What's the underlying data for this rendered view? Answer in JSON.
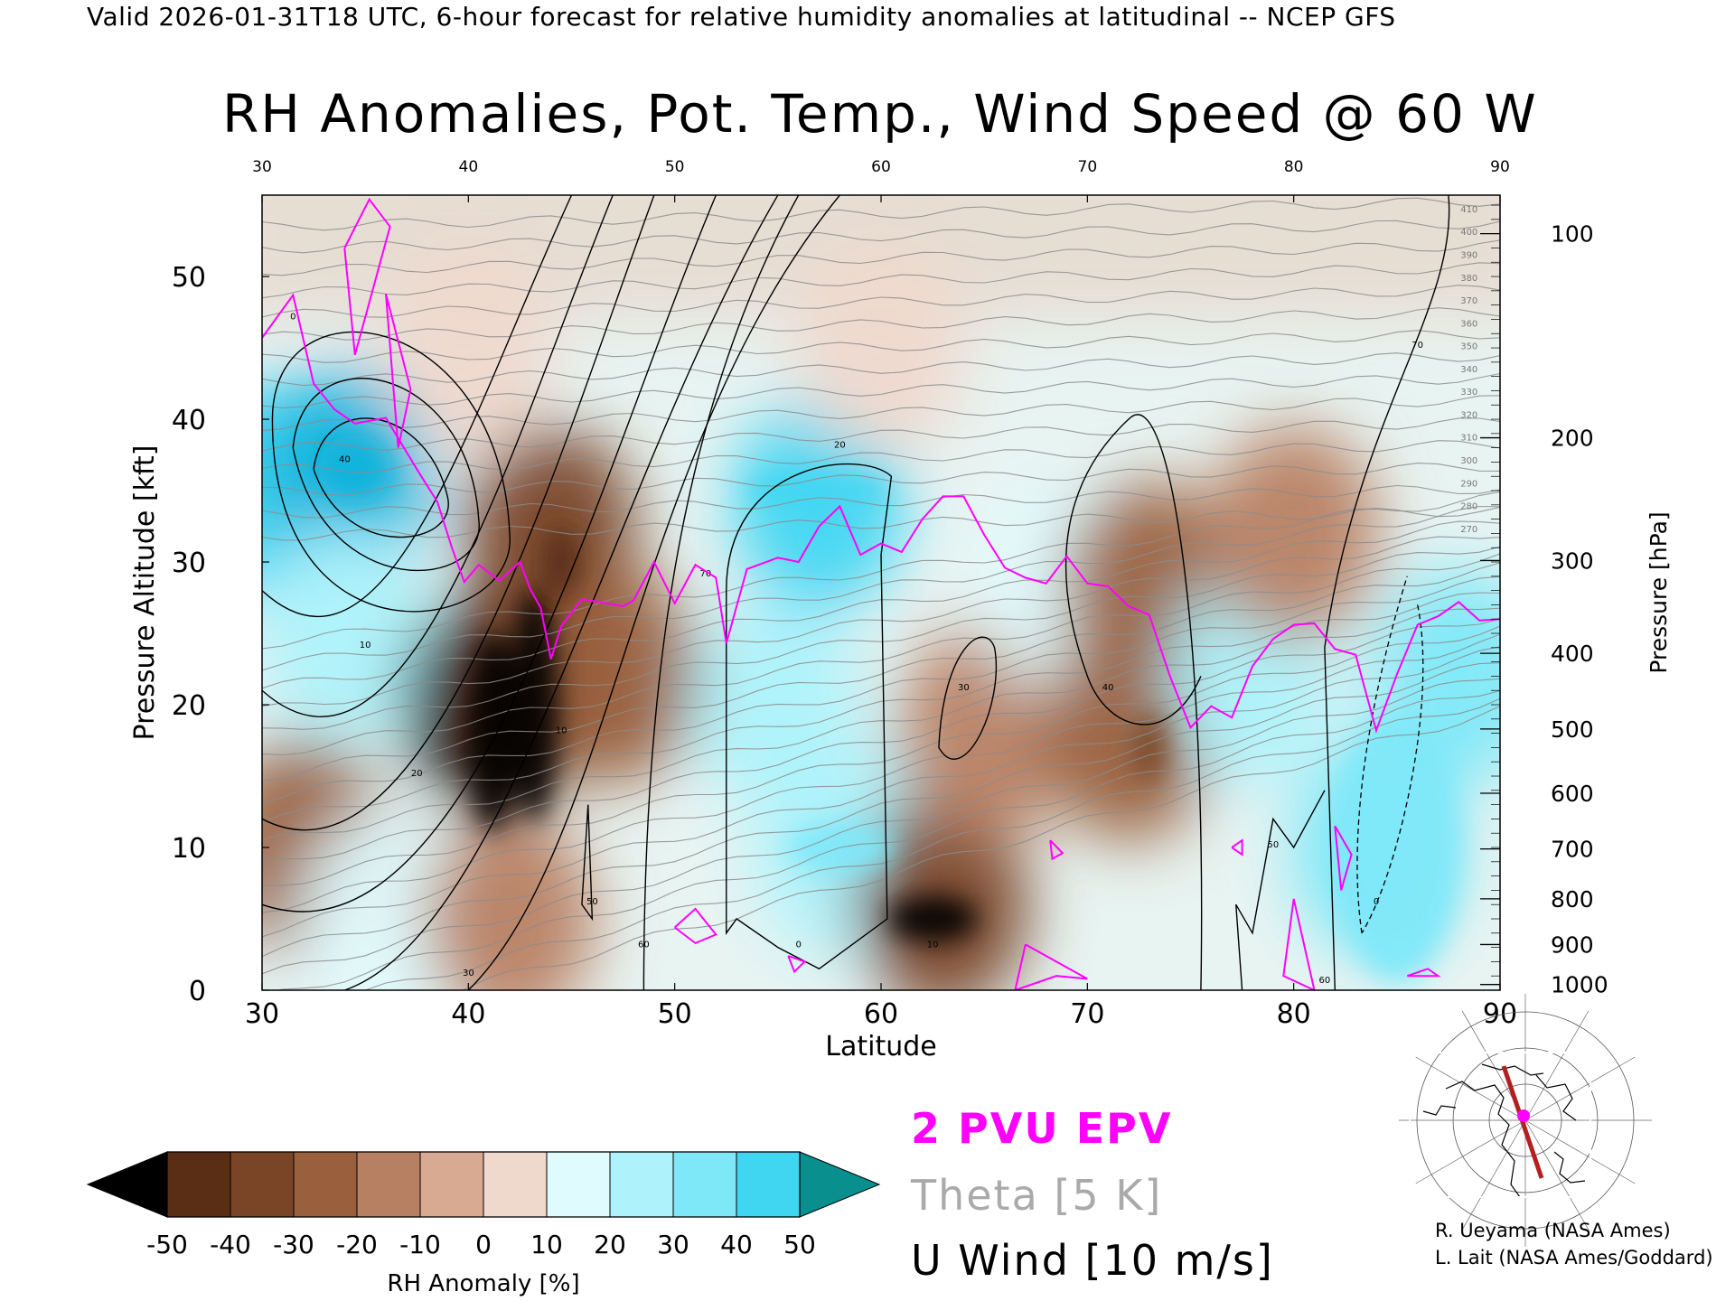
{
  "header": {
    "valid_line": "Valid 2026-01-31T18 UTC, 6-hour forecast for relative humidity anomalies at latitudinal -- NCEP GFS"
  },
  "legend": {
    "epv": "2 PVU EPV",
    "theta": "Theta [5 K]",
    "wind": "U Wind [10 m/s]"
  },
  "credits": {
    "line1": "R. Ueyama (NASA Ames)",
    "line2": "L. Lait (NASA Ames/Goddard)"
  },
  "colors": {
    "epv": "#ff00ff",
    "theta": "#999999",
    "wind": "#000000"
  },
  "chart_data": {
    "type": "heatmap",
    "title": "RH Anomalies, Pot. Temp., Wind Speed @ 60 W",
    "xlabel": "Latitude",
    "ylabel": "Pressure Altitude [kft]",
    "ylabel_right": "Pressure [hPa]",
    "xlim": [
      30,
      90
    ],
    "ylim": [
      0,
      55.7
    ],
    "x_ticks": [
      30,
      40,
      50,
      60,
      70,
      80,
      90
    ],
    "y_ticks": [
      0,
      10,
      20,
      30,
      40,
      50
    ],
    "top_ticks": [
      30,
      40,
      50,
      60,
      70,
      80,
      90
    ],
    "pressure_ticks": [
      {
        "label": "100",
        "kft": 53.0
      },
      {
        "label": "200",
        "kft": 38.7
      },
      {
        "label": "300",
        "kft": 30.1
      },
      {
        "label": "400",
        "kft": 23.6
      },
      {
        "label": "500",
        "kft": 18.3
      },
      {
        "label": "600",
        "kft": 13.8
      },
      {
        "label": "700",
        "kft": 9.9
      },
      {
        "label": "800",
        "kft": 6.4
      },
      {
        "label": "900",
        "kft": 3.2
      },
      {
        "label": "1000",
        "kft": 0.4
      }
    ],
    "colorbar": {
      "label": "RH Anomaly [%]",
      "ticks": [
        "-50",
        "-40",
        "-30",
        "-20",
        "-10",
        "0",
        "10",
        "20",
        "30",
        "40",
        "50"
      ],
      "colors": [
        "#3a1a08",
        "#5a2e14",
        "#7a4526",
        "#9a603d",
        "#b88062",
        "#d8aa92",
        "#efd8cc",
        "#e0fbfd",
        "#aef2fb",
        "#7ee8f8",
        "#40d6f2",
        "#13b4dc",
        "#0a8fb8"
      ],
      "low_color": "#000000",
      "high_color": "#0a8f8f"
    },
    "rh_anomaly_field": [
      {
        "lat": 30,
        "kft": 35,
        "value": 40
      },
      {
        "lat": 34,
        "kft": 36,
        "value": 50
      },
      {
        "lat": 34,
        "kft": 25,
        "value": 20
      },
      {
        "lat": 32,
        "kft": 10,
        "value": -30
      },
      {
        "lat": 36,
        "kft": 5,
        "value": 15
      },
      {
        "lat": 41,
        "kft": 20,
        "value": -55
      },
      {
        "lat": 43,
        "kft": 22,
        "value": -50
      },
      {
        "lat": 44,
        "kft": 32,
        "value": -35
      },
      {
        "lat": 47,
        "kft": 22,
        "value": -30
      },
      {
        "lat": 42,
        "kft": 5,
        "value": -20
      },
      {
        "lat": 55,
        "kft": 20,
        "value": 20
      },
      {
        "lat": 57,
        "kft": 34,
        "value": 45
      },
      {
        "lat": 58,
        "kft": 10,
        "value": 25
      },
      {
        "lat": 63,
        "kft": 6,
        "value": -40
      },
      {
        "lat": 65,
        "kft": 18,
        "value": -20
      },
      {
        "lat": 69,
        "kft": 28,
        "value": 15
      },
      {
        "lat": 73,
        "kft": 28,
        "value": -25
      },
      {
        "lat": 72,
        "kft": 18,
        "value": -30
      },
      {
        "lat": 78,
        "kft": 22,
        "value": 20
      },
      {
        "lat": 80,
        "kft": 32,
        "value": -20
      },
      {
        "lat": 84,
        "kft": 10,
        "value": 30
      },
      {
        "lat": 88,
        "kft": 22,
        "value": 30
      },
      {
        "lat": 60,
        "kft": 45,
        "value": -5
      },
      {
        "lat": 40,
        "kft": 45,
        "value": -10
      }
    ],
    "theta_labels": [
      "410",
      "400",
      "390",
      "380",
      "370",
      "360",
      "350",
      "340",
      "330",
      "320",
      "310",
      "300",
      "290",
      "280",
      "270"
    ],
    "u_wind_labels": [
      "0",
      "10",
      "20",
      "30",
      "40",
      "50",
      "60",
      "70"
    ],
    "epv_2pvu_line": [
      [
        30,
        45.7
      ],
      [
        31.5,
        48.7
      ],
      [
        32.5,
        42.5
      ],
      [
        33.5,
        40.7
      ],
      [
        34.5,
        39.7
      ],
      [
        36,
        40.1
      ],
      [
        37.5,
        36.5
      ],
      [
        38.5,
        34.2
      ],
      [
        39.2,
        31.0
      ],
      [
        39.8,
        28.6
      ],
      [
        40.5,
        29.8
      ],
      [
        41.5,
        28.7
      ],
      [
        42.5,
        30.0
      ],
      [
        43,
        28.1
      ],
      [
        43.5,
        26.8
      ],
      [
        44,
        23.2
      ],
      [
        44.5,
        25.5
      ],
      [
        45.5,
        27.4
      ],
      [
        47.5,
        26.9
      ],
      [
        48,
        27.3
      ],
      [
        49,
        30.0
      ],
      [
        50,
        27.1
      ],
      [
        51,
        29.8
      ],
      [
        52,
        28.9
      ],
      [
        52.5,
        24.3
      ],
      [
        53.5,
        29.5
      ],
      [
        55,
        30.3
      ],
      [
        56,
        30.0
      ],
      [
        57,
        32.5
      ],
      [
        58,
        33.9
      ],
      [
        59,
        30.5
      ],
      [
        60,
        31.3
      ],
      [
        61,
        30.7
      ],
      [
        62,
        33.0
      ],
      [
        63,
        34.6
      ],
      [
        64,
        34.6
      ],
      [
        65,
        31.9
      ],
      [
        66,
        29.6
      ],
      [
        67,
        28.9
      ],
      [
        68,
        28.5
      ],
      [
        69,
        30.4
      ],
      [
        70,
        28.5
      ],
      [
        71,
        28.3
      ],
      [
        72,
        26.9
      ],
      [
        73,
        26.3
      ],
      [
        74,
        22.0
      ],
      [
        75,
        18.4
      ],
      [
        76,
        19.9
      ],
      [
        77,
        19.1
      ],
      [
        78,
        22.7
      ],
      [
        79,
        24.6
      ],
      [
        80,
        25.6
      ],
      [
        81,
        25.7
      ],
      [
        82,
        23.9
      ],
      [
        83,
        23.5
      ],
      [
        84,
        18.2
      ],
      [
        85,
        22.1
      ],
      [
        86,
        25.6
      ],
      [
        87,
        26.2
      ],
      [
        88,
        27.2
      ],
      [
        89,
        25.9
      ],
      [
        90,
        26.0
      ]
    ]
  }
}
